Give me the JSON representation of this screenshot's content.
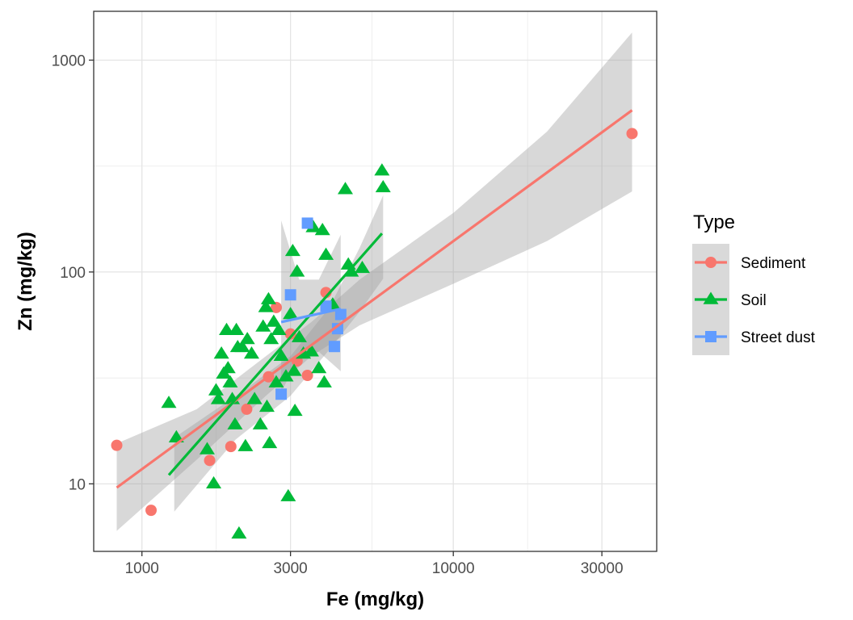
{
  "chart_data": {
    "type": "scatter",
    "xlabel": "Fe (mg/kg)",
    "ylabel": "Zn (mg/kg)",
    "x_scale": "log10",
    "y_scale": "log10",
    "xlim": [
      700,
      45000
    ],
    "ylim": [
      4.8,
      1700
    ],
    "x_ticks": [
      {
        "value": 1000,
        "label": "1000"
      },
      {
        "value": 3000,
        "label": "3000"
      },
      {
        "value": 10000,
        "label": "10000"
      },
      {
        "value": 30000,
        "label": "30000"
      }
    ],
    "x_minor_ticks": [
      1732,
      5477,
      17320
    ],
    "y_ticks": [
      {
        "value": 10,
        "label": "10"
      },
      {
        "value": 100,
        "label": "100"
      },
      {
        "value": 1000,
        "label": "1000"
      }
    ],
    "y_minor_ticks": [
      31.6,
      316
    ],
    "grid": true,
    "legend": {
      "title": "Type",
      "position": "right",
      "entries": [
        {
          "label": "Sediment",
          "color": "#F8766D",
          "shape": "circle"
        },
        {
          "label": "Soil",
          "color": "#00BA38",
          "shape": "triangle"
        },
        {
          "label": "Street dust",
          "color": "#619CFF",
          "shape": "square"
        }
      ]
    },
    "series": [
      {
        "name": "Sediment",
        "color": "#F8766D",
        "shape": "circle",
        "points": [
          [
            830,
            15.2
          ],
          [
            1070,
            7.5
          ],
          [
            1650,
            12.9
          ],
          [
            1930,
            15.0
          ],
          [
            2170,
            22.5
          ],
          [
            2550,
            32.0
          ],
          [
            2700,
            68.0
          ],
          [
            3000,
            51.0
          ],
          [
            3150,
            38.0
          ],
          [
            3400,
            32.5
          ],
          [
            3900,
            80.0
          ],
          [
            37500,
            450.0
          ]
        ],
        "fit": {
          "x": [
            830,
            37500
          ],
          "y": [
            9.6,
            580
          ]
        },
        "band": {
          "x": [
            830,
            1500,
            2500,
            3500,
            5000,
            10000,
            20000,
            37500
          ],
          "lower": [
            6.0,
            13.0,
            26.0,
            40.0,
            56.0,
            88.0,
            140.0,
            240.0
          ],
          "upper": [
            15.5,
            22.5,
            40.0,
            58.0,
            92.0,
            190.0,
            460.0,
            1350.0
          ]
        }
      },
      {
        "name": "Soil",
        "color": "#00BA38",
        "shape": "triangle",
        "points": [
          [
            1220,
            24
          ],
          [
            1290,
            16.5
          ],
          [
            1620,
            14.5
          ],
          [
            1700,
            10
          ],
          [
            1730,
            27.5
          ],
          [
            1760,
            25
          ],
          [
            1800,
            41
          ],
          [
            1830,
            33
          ],
          [
            1870,
            53
          ],
          [
            1890,
            35
          ],
          [
            1920,
            30
          ],
          [
            1950,
            25
          ],
          [
            1990,
            19
          ],
          [
            2010,
            53
          ],
          [
            2030,
            44
          ],
          [
            2050,
            5.8
          ],
          [
            2100,
            44
          ],
          [
            2150,
            15
          ],
          [
            2180,
            48
          ],
          [
            2250,
            41
          ],
          [
            2300,
            25
          ],
          [
            2400,
            19
          ],
          [
            2450,
            55
          ],
          [
            2500,
            68
          ],
          [
            2520,
            23
          ],
          [
            2550,
            74
          ],
          [
            2570,
            15.5
          ],
          [
            2600,
            48
          ],
          [
            2650,
            58
          ],
          [
            2700,
            30
          ],
          [
            2750,
            53
          ],
          [
            2800,
            40
          ],
          [
            2900,
            32
          ],
          [
            2950,
            8.7
          ],
          [
            3000,
            63
          ],
          [
            3050,
            125
          ],
          [
            3080,
            34
          ],
          [
            3100,
            22
          ],
          [
            3150,
            100
          ],
          [
            3200,
            49
          ],
          [
            3300,
            41
          ],
          [
            3500,
            42
          ],
          [
            3550,
            162
          ],
          [
            3700,
            35
          ],
          [
            3800,
            157
          ],
          [
            3850,
            30
          ],
          [
            3900,
            120
          ],
          [
            4100,
            70
          ],
          [
            4500,
            245
          ],
          [
            4600,
            108
          ],
          [
            4700,
            100
          ],
          [
            5100,
            104
          ],
          [
            5900,
            300
          ],
          [
            5950,
            250
          ]
        ],
        "fit": {
          "x": [
            1220,
            5900
          ],
          "y": [
            11,
            152
          ]
        },
        "band": {
          "x": [
            1270,
            2000,
            3000,
            4000,
            5000,
            5950
          ],
          "lower": [
            7.4,
            16.2,
            26.0,
            43.0,
            65.0,
            93.0
          ],
          "upper": [
            16.5,
            26.0,
            40.0,
            68.0,
            130.0,
            230.0
          ]
        }
      },
      {
        "name": "Street dust",
        "color": "#619CFF",
        "shape": "square",
        "points": [
          [
            2800,
            26.5
          ],
          [
            3000,
            78
          ],
          [
            3400,
            170
          ],
          [
            3900,
            69
          ],
          [
            4150,
            44.5
          ],
          [
            4250,
            54
          ],
          [
            4350,
            63
          ]
        ],
        "fit": {
          "x": [
            2800,
            4350
          ],
          "y": [
            58,
            67
          ]
        },
        "band": {
          "x": [
            2800,
            3200,
            3700,
            4350
          ],
          "lower": [
            27.0,
            40.0,
            42.0,
            34.0
          ],
          "upper": [
            175.0,
            92.0,
            92.0,
            150.0
          ]
        }
      }
    ]
  }
}
